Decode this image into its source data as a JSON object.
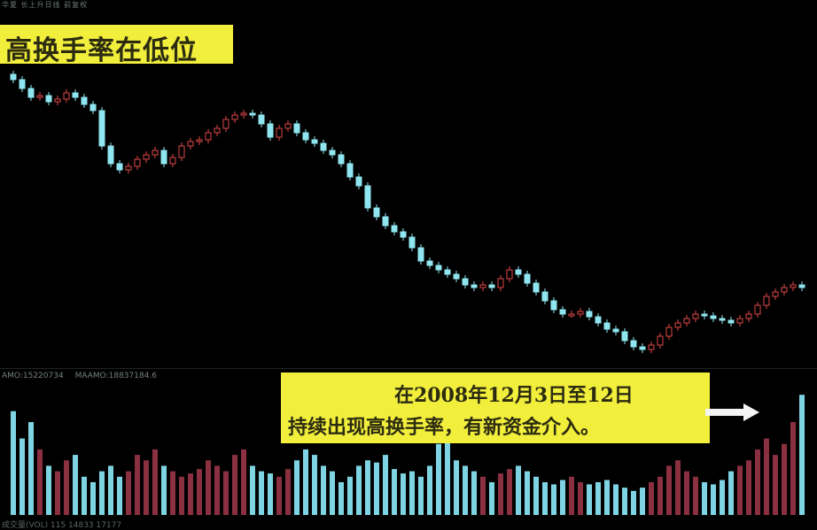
{
  "header": {
    "window_text": "华夏 长上升日线 前复权"
  },
  "title": "高换手率在低位",
  "volume_header": {
    "amo": "AMO:15220734",
    "maamo": "MAAMO:18837184.6"
  },
  "annotation": {
    "line1": "在2008年12月3日至12日",
    "line2": "持续出现高换手率，有新资金介入。",
    "arrow_icon": "right-arrow-icon"
  },
  "footer_text": "成交量(VOL) 115 14833 17177",
  "colors": {
    "background": "#000000",
    "up": "#e04848",
    "down": "#8fe6f0",
    "volume_up": "#8a3040",
    "volume_down": "#7fd4e4",
    "highlight": "#f2ee3c"
  },
  "chart_data": {
    "type": "candlestick",
    "grid": false,
    "closes": [
      33.0,
      32.0,
      31.0,
      31.2,
      30.5,
      30.8,
      31.5,
      31.0,
      30.2,
      29.5,
      25.5,
      23.5,
      22.8,
      23.2,
      24.0,
      24.5,
      25.0,
      23.5,
      24.2,
      25.5,
      26.0,
      26.2,
      27.0,
      27.5,
      28.5,
      29.0,
      29.2,
      29.0,
      28.0,
      26.5,
      27.5,
      28.0,
      27.0,
      26.2,
      25.8,
      25.0,
      24.5,
      23.5,
      22.0,
      21.0,
      18.5,
      17.5,
      16.5,
      15.8,
      15.2,
      14.0,
      12.5,
      12.0,
      11.5,
      11.0,
      10.5,
      9.8,
      9.5,
      9.8,
      9.5,
      10.5,
      11.5,
      11.0,
      10.0,
      9.0,
      8.0,
      7.0,
      6.5,
      6.5,
      6.8,
      6.2,
      5.5,
      4.8,
      4.5,
      3.5,
      2.8,
      2.5,
      3.0,
      4.0,
      5.0,
      5.5,
      6.0,
      6.5,
      6.3,
      6.0,
      5.8,
      5.5,
      6.0,
      6.5,
      7.5,
      8.5,
      9.0,
      9.5,
      9.8,
      9.5
    ],
    "volumes": [
      95,
      70,
      85,
      60,
      45,
      40,
      50,
      55,
      35,
      30,
      40,
      45,
      35,
      40,
      55,
      50,
      60,
      45,
      40,
      35,
      38,
      42,
      50,
      45,
      40,
      55,
      60,
      45,
      40,
      38,
      35,
      42,
      50,
      60,
      55,
      45,
      40,
      30,
      35,
      45,
      50,
      48,
      55,
      42,
      38,
      40,
      35,
      45,
      65,
      70,
      50,
      45,
      40,
      35,
      30,
      38,
      42,
      45,
      40,
      35,
      30,
      28,
      32,
      35,
      30,
      28,
      30,
      32,
      28,
      25,
      22,
      25,
      30,
      35,
      45,
      50,
      40,
      35,
      30,
      28,
      32,
      40,
      45,
      50,
      60,
      70,
      55,
      65,
      85,
      110
    ]
  }
}
